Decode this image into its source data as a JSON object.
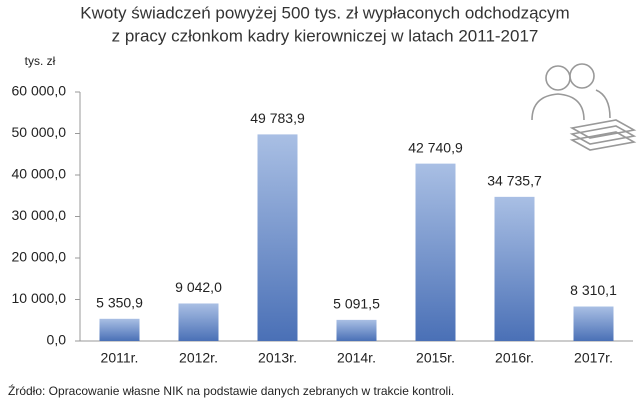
{
  "chart_data": {
    "type": "bar",
    "title": "Kwoty świadczeń powyżej 500 tys. zł wypłaconych odchodzącym",
    "subtitle": "z pracy członkom kadry kierowniczej w latach 2011-2017",
    "y_label": "tys. zł",
    "categories": [
      "2011r.",
      "2012r.",
      "2013r.",
      "2014r.",
      "2015r.",
      "2016r.",
      "2017r."
    ],
    "values": [
      5350.9,
      9042.0,
      49783.9,
      5091.5,
      42740.9,
      34735.7,
      8310.1
    ],
    "value_labels": [
      "5 350,9",
      "9 042,0",
      "49 783,9",
      "5 091,5",
      "42 740,9",
      "34 735,7",
      "8 310,1"
    ],
    "color": "#4a70b6",
    "ylim": [
      0,
      60000
    ],
    "yticks": [
      {
        "value": 0,
        "label": "0,0"
      },
      {
        "value": 10000,
        "label": "10 000,0"
      },
      {
        "value": 20000,
        "label": "20 000,0"
      },
      {
        "value": 30000,
        "label": "30 000,0"
      },
      {
        "value": 40000,
        "label": "40 000,0"
      },
      {
        "value": 50000,
        "label": "50 000,0"
      },
      {
        "value": 60000,
        "label": "60 000,0"
      }
    ],
    "grid": false,
    "source": "Źródło: Opracowanie własne NIK na podstawie danych zebranych w trakcie kontroli."
  }
}
